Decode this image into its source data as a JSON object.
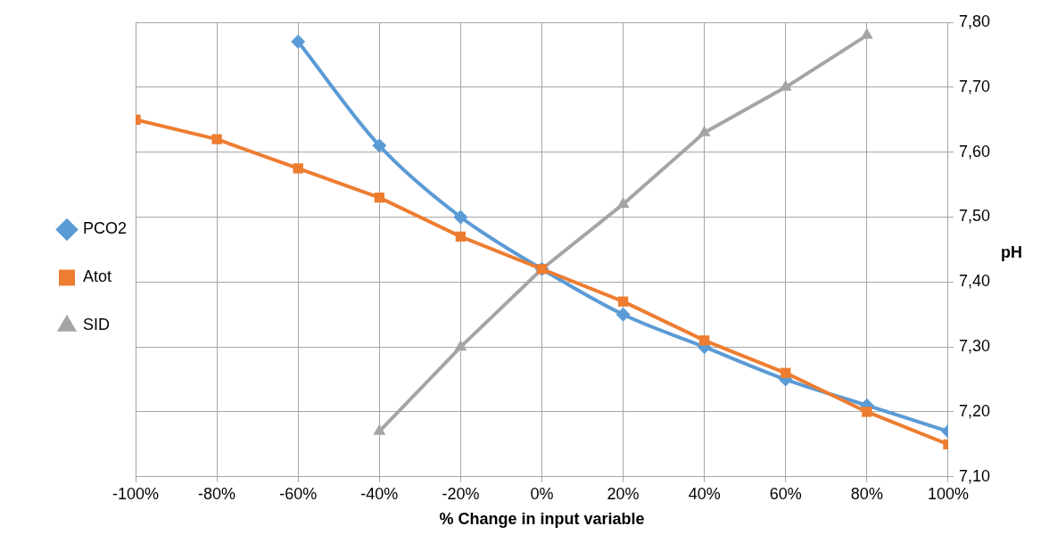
{
  "chart_data": {
    "type": "line",
    "xlabel": "% Change in input variable",
    "ylabel": "pH",
    "xlim": [
      -100,
      100
    ],
    "xticks": [
      {
        "value": -100,
        "label": "-100%"
      },
      {
        "value": -80,
        "label": "-80%"
      },
      {
        "value": -60,
        "label": "-60%"
      },
      {
        "value": -40,
        "label": "-40%"
      },
      {
        "value": -20,
        "label": "-20%"
      },
      {
        "value": 0,
        "label": "0%"
      },
      {
        "value": 20,
        "label": "20%"
      },
      {
        "value": 40,
        "label": "40%"
      },
      {
        "value": 60,
        "label": "60%"
      },
      {
        "value": 80,
        "label": "80%"
      },
      {
        "value": 100,
        "label": "100%"
      }
    ],
    "ylim": [
      7.1,
      7.8
    ],
    "yticks": [
      {
        "value": 7.1,
        "label": "7,10"
      },
      {
        "value": 7.2,
        "label": "7,20"
      },
      {
        "value": 7.3,
        "label": "7,30"
      },
      {
        "value": 7.4,
        "label": "7,40"
      },
      {
        "value": 7.5,
        "label": "7,50"
      },
      {
        "value": 7.6,
        "label": "7,60"
      },
      {
        "value": 7.7,
        "label": "7,70"
      },
      {
        "value": 7.8,
        "label": "7,80"
      }
    ],
    "grid": true,
    "legend": "left",
    "line_style": "solid",
    "series": [
      {
        "name": "PCO2",
        "color": "#5b9bd5",
        "marker": "diamond",
        "x": [
          -60,
          -40,
          -20,
          0,
          20,
          40,
          60,
          80,
          100
        ],
        "values": [
          7.77,
          7.61,
          7.5,
          7.42,
          7.35,
          7.3,
          7.25,
          7.21,
          7.17
        ]
      },
      {
        "name": "Atot",
        "color": "#ed7d31",
        "marker": "square",
        "x": [
          -100,
          -80,
          -60,
          -40,
          -20,
          0,
          20,
          40,
          60,
          80,
          100
        ],
        "values": [
          7.65,
          7.62,
          7.575,
          7.53,
          7.47,
          7.42,
          7.37,
          7.31,
          7.26,
          7.2,
          7.15
        ]
      },
      {
        "name": "SID",
        "color": "#a5a5a5",
        "marker": "triangle",
        "x": [
          -40,
          -20,
          0,
          20,
          40,
          60,
          80
        ],
        "values": [
          7.17,
          7.3,
          7.42,
          7.52,
          7.63,
          7.7,
          7.78
        ]
      }
    ]
  }
}
